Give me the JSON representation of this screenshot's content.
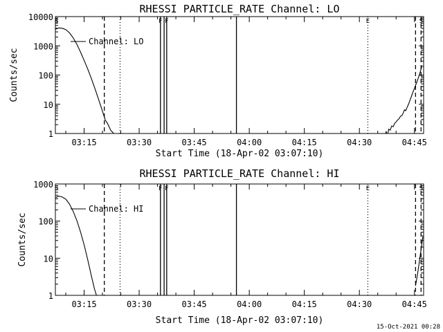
{
  "footer_timestamp": "15-Oct-2021 00:28",
  "chart_data": [
    {
      "type": "line",
      "title": "RHESSI PARTICLE_RATE Channel: LO",
      "xlabel": "Start Time (18-Apr-02 03:07:10)",
      "ylabel": "Counts/sec",
      "yscale": "log",
      "ylim": [
        1,
        10000
      ],
      "yticks": [
        1,
        10,
        100,
        1000,
        10000
      ],
      "yticklabels": [
        "1",
        "10",
        "100",
        "1000",
        "10000"
      ],
      "xlim_minutes": [
        7.17,
        107.5
      ],
      "xticks_minutes": [
        15,
        30,
        45,
        60,
        75,
        90,
        105
      ],
      "xticklabels": [
        "03:15",
        "03:30",
        "03:45",
        "04:00",
        "04:15",
        "04:30",
        "04:45"
      ],
      "legend": "Channel: LO",
      "series": [
        {
          "name": "Channel: LO",
          "segments": [
            {
              "x": [
                7.2,
                8,
                9,
                10,
                11,
                12,
                13,
                14,
                15,
                16,
                17,
                18,
                19,
                20,
                20.8,
                21.3,
                21.8,
                22.3,
                22.8,
                23.3
              ],
              "y": [
                3700,
                4100,
                4000,
                3600,
                2800,
                1900,
                1150,
                620,
                320,
                160,
                75,
                33,
                14,
                5.8,
                2.8,
                2.3,
                1.7,
                1.25,
                1.1,
                0.9
              ]
            },
            {
              "x": [
                97,
                97.3,
                97.6,
                98,
                98.4,
                98.8,
                99.2,
                99.6,
                100,
                100.4,
                100.8,
                101.2,
                101.6,
                102,
                102.3,
                102.6,
                103,
                103.4,
                103.8,
                104.2,
                104.6,
                105,
                105.4,
                105.8,
                106.2,
                106.6,
                107
              ],
              "y": [
                0.8,
                1.2,
                0.8,
                1.4,
                1.3,
                1.8,
                1.7,
                2.2,
                2.5,
                2.9,
                3.2,
                3.9,
                4.1,
                5.2,
                6.5,
                6.0,
                7.8,
                10.2,
                14,
                19,
                26,
                35,
                48,
                65,
                90,
                130,
                190
              ]
            }
          ]
        }
      ],
      "markers": [
        {
          "label": "S",
          "x_minutes": 7.5,
          "style": "none"
        },
        {
          "label": "",
          "x_minutes": 20.5,
          "style": "dashed"
        },
        {
          "label": "",
          "x_minutes": 24.8,
          "style": "dotted"
        },
        {
          "label": "F",
          "x_minutes": 35.8,
          "style": "solid"
        },
        {
          "label": "F",
          "x_minutes": 37.5,
          "style": "solid"
        },
        {
          "label": "",
          "x_minutes": 36.8,
          "style": "solid"
        },
        {
          "label": "",
          "x_minutes": 56.5,
          "style": "solid"
        },
        {
          "label": "E",
          "x_minutes": 92.3,
          "style": "dotted"
        },
        {
          "label": "",
          "x_minutes": 105.3,
          "style": "dashed"
        },
        {
          "label": "S",
          "x_minutes": 106.8,
          "style": "dashed"
        }
      ]
    },
    {
      "type": "line",
      "title": "RHESSI PARTICLE_RATE Channel: HI",
      "xlabel": "Start Time (18-Apr-02 03:07:10)",
      "ylabel": "Counts/sec",
      "yscale": "log",
      "ylim": [
        1,
        1000
      ],
      "yticks": [
        1,
        10,
        100,
        1000
      ],
      "yticklabels": [
        "1",
        "10",
        "100",
        "1000"
      ],
      "xlim_minutes": [
        7.17,
        107.5
      ],
      "xticks_minutes": [
        15,
        30,
        45,
        60,
        75,
        90,
        105
      ],
      "xticklabels": [
        "03:15",
        "03:30",
        "03:45",
        "04:00",
        "04:15",
        "04:30",
        "04:45"
      ],
      "legend": "Channel: HI",
      "series": [
        {
          "name": "Channel: HI",
          "segments": [
            {
              "x": [
                7.2,
                8,
                9,
                10,
                11,
                12,
                13,
                14,
                15,
                16,
                17,
                17.8,
                18.5,
                19.3
              ],
              "y": [
                430,
                470,
                450,
                390,
                290,
                185,
                105,
                52,
                23,
                9,
                3.3,
                1.5,
                0.9,
                0.6
              ]
            },
            {
              "x": [
                105.3,
                105.8,
                106.3,
                106.8,
                107.3
              ],
              "y": [
                1.8,
                3.5,
                7.5,
                17,
                38
              ]
            }
          ]
        }
      ],
      "markers": [
        {
          "label": "S",
          "x_minutes": 7.5,
          "style": "none"
        },
        {
          "label": "",
          "x_minutes": 20.5,
          "style": "dashed"
        },
        {
          "label": "",
          "x_minutes": 24.8,
          "style": "dotted"
        },
        {
          "label": "F",
          "x_minutes": 35.8,
          "style": "solid"
        },
        {
          "label": "F",
          "x_minutes": 37.5,
          "style": "solid"
        },
        {
          "label": "",
          "x_minutes": 36.8,
          "style": "solid"
        },
        {
          "label": "",
          "x_minutes": 56.5,
          "style": "solid"
        },
        {
          "label": "E",
          "x_minutes": 92.3,
          "style": "dotted"
        },
        {
          "label": "",
          "x_minutes": 105.3,
          "style": "dashed"
        },
        {
          "label": "S",
          "x_minutes": 106.8,
          "style": "dashed"
        }
      ]
    }
  ]
}
